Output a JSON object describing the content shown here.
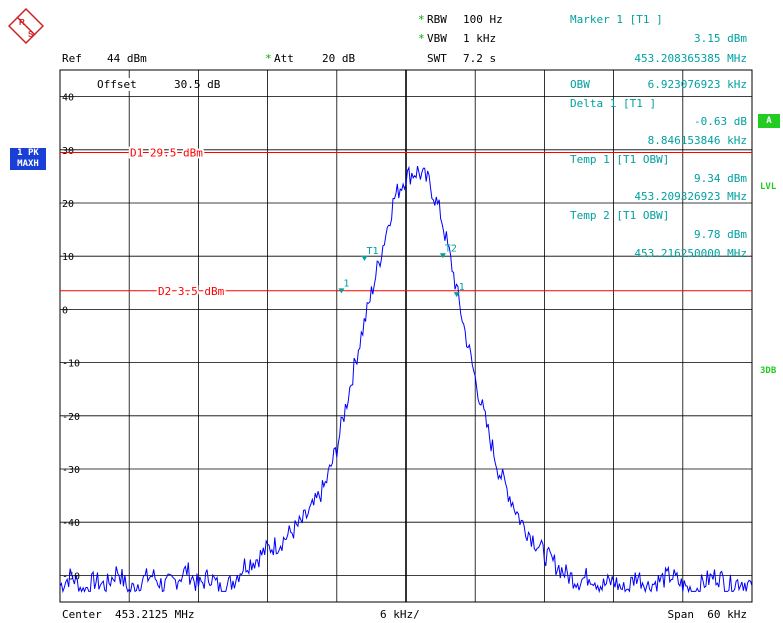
{
  "header": {
    "rbw_label": "RBW",
    "rbw_value": "100 Hz",
    "vbw_label": "VBW",
    "vbw_value": "1 kHz",
    "swt_label": "SWT",
    "swt_value": "7.2 s",
    "ref_label": "Ref",
    "ref_value": "44 dBm",
    "att_label": "Att",
    "att_value": "20 dB",
    "star": "*",
    "marker_title": "Marker 1 [T1 ]",
    "marker_level": "3.15 dBm",
    "marker_freq": "453.208365385 MHz",
    "offset_label": "Offset",
    "offset_value": "30.5 dB"
  },
  "marker_box": {
    "obw_label": "OBW",
    "obw_value": "6.923076923 kHz",
    "delta_title": "Delta 1 [T1 ]",
    "delta_level": "-0.63 dB",
    "delta_freq": "8.846153846 kHz",
    "temp1_title": "Temp 1 [T1 OBW]",
    "temp1_level": "9.34 dBm",
    "temp1_freq": "453.209326923 MHz",
    "temp2_title": "Temp 2 [T1 OBW]",
    "temp2_level": "9.78 dBm",
    "temp2_freq": "453.216250000 MHz"
  },
  "side": {
    "trace1_line1": "1 PK",
    "trace1_line2": "MAXH",
    "a_badge": "A",
    "lvl": "LVL",
    "db3": "3DB"
  },
  "footer": {
    "center": "Center  453.2125 MHz",
    "div": "6 kHz/",
    "span": "Span  60 kHz"
  },
  "display_lines": [
    {
      "label": "D1 29.5 dBm",
      "level": 29.5
    },
    {
      "label": "D2 3.5 dBm",
      "level": 3.5
    }
  ],
  "markers": [
    {
      "label": "T1",
      "x": 26.4,
      "y": 9.3
    },
    {
      "label": "T2",
      "x": 33.2,
      "y": 9.8
    },
    {
      "label": "1",
      "x": 24.4,
      "y": 3.2
    },
    {
      "label": "1",
      "x": 34.4,
      "y": 2.5
    }
  ],
  "colors": {
    "trace": "#0000ff",
    "display_line": "#ff0000",
    "marker": "#00a0a0",
    "grid": "#000000"
  },
  "chart_data": {
    "type": "line",
    "x_unit": "kHz from center",
    "xlim": [
      0,
      60
    ],
    "ylim": [
      -55,
      45
    ],
    "y_ticks": [
      40,
      30,
      20,
      10,
      0,
      -10,
      -20,
      -30,
      -40,
      -50
    ],
    "y_tick_labels": [
      "40",
      "30",
      "20",
      "10",
      "0",
      "-10",
      "-20",
      "-30",
      "-40",
      "-50"
    ],
    "series": [
      {
        "x": [
          0,
          1,
          2,
          3,
          4,
          5,
          6,
          7,
          8,
          9,
          10,
          11,
          12,
          13,
          14,
          15,
          16,
          17,
          18,
          19,
          20,
          21,
          22,
          23,
          24,
          25,
          26,
          27,
          28,
          29,
          30,
          31,
          32,
          33,
          34,
          35,
          36,
          37,
          38,
          39,
          40,
          41,
          42,
          43,
          44,
          45,
          46,
          47,
          48,
          49,
          50,
          51,
          52,
          53,
          54,
          55,
          56,
          57,
          58,
          59,
          60
        ],
        "values": [
          -52,
          -50,
          -53,
          -51,
          -52,
          -49,
          -53,
          -51,
          -50,
          -52,
          -51,
          -49,
          -52,
          -50,
          -53,
          -51,
          -48,
          -47,
          -45,
          -44,
          -42,
          -40,
          -37,
          -33,
          -26,
          -16,
          -6,
          3,
          12,
          21,
          25,
          26,
          24,
          18,
          8,
          -3,
          -13,
          -22,
          -30,
          -35,
          -40,
          -43,
          -46,
          -48,
          -50,
          -51,
          -50,
          -52,
          -51,
          -53,
          -50,
          -52,
          -51,
          -50,
          -52,
          -53,
          -51,
          -50,
          -52,
          -51,
          -52
        ]
      }
    ]
  }
}
